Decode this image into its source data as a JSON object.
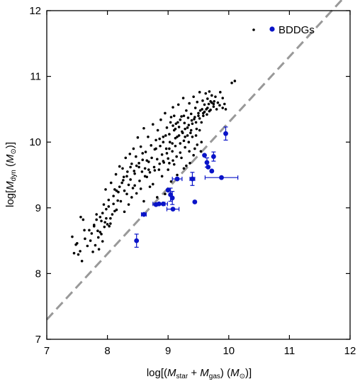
{
  "chart_data": {
    "type": "scatter",
    "xlabel": {
      "prefix": "log[(",
      "var1": "M",
      "sub1": "star",
      "plus": " + ",
      "var2": "M",
      "sub2": "gas",
      "mid": ") (",
      "var3": "M",
      "sub3": "⊙",
      "suffix": ")]"
    },
    "ylabel": {
      "prefix": "log[",
      "var1": "M",
      "sub1": "dyn",
      "mid": " (",
      "var2": "M",
      "sub2": "⊙",
      "suffix": ")]"
    },
    "xlim": [
      7,
      12
    ],
    "ylim": [
      7,
      12
    ],
    "xticks": [
      "7",
      "8",
      "9",
      "10",
      "11",
      "12"
    ],
    "yticks": [
      "7",
      "8",
      "9",
      "10",
      "11",
      "12"
    ],
    "grid": false,
    "legend": {
      "placement": "top-right",
      "label": "BDDGs"
    },
    "reference_line": {
      "style": "dashed",
      "color": "#999999",
      "x": [
        7,
        12
      ],
      "y": [
        7.3,
        12.3
      ]
    },
    "series": [
      {
        "color": "#000000",
        "marker": "small-dot",
        "points": [
          [
            7.42,
            8.56
          ],
          [
            7.45,
            8.31
          ],
          [
            7.48,
            8.44
          ],
          [
            7.52,
            8.29
          ],
          [
            7.55,
            8.34
          ],
          [
            7.58,
            8.19
          ],
          [
            7.56,
            8.86
          ],
          [
            7.6,
            8.82
          ],
          [
            7.63,
            8.53
          ],
          [
            7.67,
            8.42
          ],
          [
            7.7,
            8.66
          ],
          [
            7.72,
            8.5
          ],
          [
            7.74,
            8.61
          ],
          [
            7.76,
            8.33
          ],
          [
            7.78,
            8.72
          ],
          [
            7.8,
            8.43
          ],
          [
            7.82,
            8.9
          ],
          [
            7.85,
            8.55
          ],
          [
            7.86,
            8.37
          ],
          [
            7.88,
            8.63
          ],
          [
            7.9,
            8.8
          ],
          [
            7.92,
            8.49
          ],
          [
            7.94,
            9.05
          ],
          [
            7.95,
            8.71
          ],
          [
            7.97,
            9.28
          ],
          [
            7.98,
            8.84
          ],
          [
            8.0,
            8.75
          ],
          [
            8.02,
            9.02
          ],
          [
            8.03,
            8.72
          ],
          [
            8.05,
            8.76
          ],
          [
            8.06,
            9.38
          ],
          [
            8.08,
            8.9
          ],
          [
            8.1,
            9.18
          ],
          [
            8.12,
            9.28
          ],
          [
            8.14,
            9.51
          ],
          [
            8.15,
            8.97
          ],
          [
            8.17,
            9.11
          ],
          [
            8.18,
            9.24
          ],
          [
            8.2,
            9.63
          ],
          [
            8.22,
            9.1
          ],
          [
            8.24,
            9.38
          ],
          [
            8.25,
            9.6
          ],
          [
            8.27,
            9.47
          ],
          [
            8.28,
            8.94
          ],
          [
            8.3,
            9.76
          ],
          [
            8.32,
            9.21
          ],
          [
            8.33,
            9.55
          ],
          [
            8.35,
            9.35
          ],
          [
            8.37,
            9.82
          ],
          [
            8.38,
            9.43
          ],
          [
            8.4,
            9.67
          ],
          [
            8.42,
            9.3
          ],
          [
            8.43,
            9.9
          ],
          [
            8.45,
            9.52
          ],
          [
            8.47,
            9.78
          ],
          [
            8.48,
            9.22
          ],
          [
            8.5,
            10.07
          ],
          [
            8.52,
            9.62
          ],
          [
            8.53,
            9.41
          ],
          [
            8.55,
            9.93
          ],
          [
            8.57,
            9.55
          ],
          [
            8.58,
            9.73
          ],
          [
            8.6,
            10.21
          ],
          [
            8.62,
            9.6
          ],
          [
            8.63,
            9.85
          ],
          [
            8.65,
            9.47
          ],
          [
            8.67,
            10.08
          ],
          [
            8.68,
            9.7
          ],
          [
            8.7,
            9.54
          ],
          [
            8.72,
            9.95
          ],
          [
            8.73,
            9.76
          ],
          [
            8.75,
            10.27
          ],
          [
            8.77,
            9.62
          ],
          [
            8.78,
            9.89
          ],
          [
            8.8,
            10.03
          ],
          [
            8.82,
            9.74
          ],
          [
            8.83,
            10.18
          ],
          [
            8.85,
            9.58
          ],
          [
            8.87,
            9.94
          ],
          [
            8.88,
            10.34
          ],
          [
            8.9,
            9.81
          ],
          [
            8.92,
            10.08
          ],
          [
            8.93,
            9.69
          ],
          [
            8.95,
            10.44
          ],
          [
            8.97,
            9.9
          ],
          [
            8.98,
            10.22
          ],
          [
            9.0,
            9.75
          ],
          [
            9.02,
            10.12
          ],
          [
            9.03,
            10.0
          ],
          [
            9.05,
            10.38
          ],
          [
            9.07,
            9.86
          ],
          [
            9.08,
            10.53
          ],
          [
            9.1,
            10.18
          ],
          [
            9.12,
            9.94
          ],
          [
            9.13,
            10.28
          ],
          [
            9.15,
            10.08
          ],
          [
            9.17,
            10.57
          ],
          [
            9.18,
            10.23
          ],
          [
            9.2,
            9.98
          ],
          [
            9.22,
            10.39
          ],
          [
            9.23,
            10.16
          ],
          [
            9.25,
            10.67
          ],
          [
            9.27,
            10.29
          ],
          [
            9.28,
            10.08
          ],
          [
            9.3,
            10.48
          ],
          [
            9.32,
            10.22
          ],
          [
            9.33,
            10.37
          ],
          [
            9.35,
            10.59
          ],
          [
            9.37,
            10.14
          ],
          [
            9.38,
            10.43
          ],
          [
            9.4,
            10.28
          ],
          [
            9.42,
            10.69
          ],
          [
            9.43,
            10.35
          ],
          [
            9.45,
            10.52
          ],
          [
            9.47,
            10.2
          ],
          [
            9.48,
            10.61
          ],
          [
            9.5,
            10.4
          ],
          [
            9.52,
            10.76
          ],
          [
            9.53,
            10.48
          ],
          [
            9.55,
            10.3
          ],
          [
            9.57,
            10.63
          ],
          [
            9.58,
            10.44
          ],
          [
            9.6,
            10.57
          ],
          [
            9.62,
            10.74
          ],
          [
            9.63,
            10.5
          ],
          [
            9.65,
            10.66
          ],
          [
            9.67,
            10.58
          ],
          [
            9.68,
            10.77
          ],
          [
            9.7,
            10.62
          ],
          [
            9.72,
            10.71
          ],
          [
            9.75,
            10.54
          ],
          [
            9.78,
            10.69
          ],
          [
            9.82,
            10.6
          ],
          [
            9.86,
            10.76
          ],
          [
            9.9,
            10.67
          ],
          [
            10.05,
            10.9
          ],
          [
            10.1,
            10.93
          ],
          [
            8.6,
            9.1
          ],
          [
            8.7,
            9.32
          ],
          [
            8.75,
            9.36
          ],
          [
            8.82,
            9.16
          ],
          [
            8.9,
            9.48
          ],
          [
            8.95,
            9.21
          ],
          [
            9.0,
            9.58
          ],
          [
            9.05,
            9.4
          ],
          [
            9.1,
            9.66
          ],
          [
            9.15,
            9.5
          ],
          [
            9.22,
            9.76
          ],
          [
            9.3,
            9.64
          ],
          [
            9.35,
            9.86
          ],
          [
            9.42,
            9.8
          ],
          [
            9.48,
            9.96
          ],
          [
            9.55,
            10.0
          ],
          [
            8.35,
            9.05
          ],
          [
            8.4,
            9.16
          ],
          [
            8.28,
            9.26
          ],
          [
            8.12,
            8.95
          ],
          [
            8.05,
            8.84
          ],
          [
            7.96,
            8.78
          ],
          [
            7.84,
            8.65
          ],
          [
            7.62,
            8.66
          ],
          [
            7.5,
            8.46
          ],
          [
            7.9,
            8.6
          ],
          [
            8.45,
            9.34
          ],
          [
            8.55,
            9.29
          ],
          [
            8.62,
            9.48
          ],
          [
            8.68,
            9.58
          ],
          [
            8.78,
            9.57
          ],
          [
            8.86,
            9.67
          ],
          [
            8.92,
            9.71
          ],
          [
            8.98,
            9.83
          ],
          [
            9.02,
            9.9
          ],
          [
            9.07,
            9.98
          ],
          [
            9.12,
            10.06
          ],
          [
            9.18,
            10.1
          ],
          [
            9.24,
            10.14
          ],
          [
            9.28,
            10.2
          ],
          [
            9.34,
            10.26
          ],
          [
            9.39,
            10.33
          ],
          [
            9.44,
            10.38
          ],
          [
            9.5,
            10.44
          ],
          [
            9.56,
            10.5
          ],
          [
            9.6,
            10.46
          ],
          [
            9.65,
            10.52
          ],
          [
            9.7,
            10.49
          ],
          [
            9.75,
            10.58
          ],
          [
            9.8,
            10.5
          ],
          [
            9.85,
            10.56
          ],
          [
            9.9,
            10.52
          ],
          [
            9.93,
            10.58
          ],
          [
            9.95,
            10.5
          ],
          [
            8.65,
            9.72
          ],
          [
            8.58,
            9.83
          ],
          [
            8.52,
            9.68
          ],
          [
            8.48,
            9.64
          ],
          [
            8.44,
            9.56
          ],
          [
            8.38,
            9.62
          ],
          [
            8.32,
            9.48
          ],
          [
            8.26,
            9.42
          ],
          [
            8.2,
            9.32
          ],
          [
            8.15,
            9.26
          ],
          [
            8.1,
            9.06
          ],
          [
            8.02,
            9.12
          ],
          [
            7.98,
            8.98
          ],
          [
            7.92,
            8.92
          ],
          [
            7.88,
            8.86
          ],
          [
            7.82,
            8.82
          ],
          [
            7.78,
            8.74
          ],
          [
            9.26,
            10.02
          ],
          [
            9.32,
            10.1
          ],
          [
            9.38,
            10.18
          ],
          [
            9.46,
            10.3
          ],
          [
            9.52,
            10.36
          ],
          [
            9.58,
            10.4
          ],
          [
            9.64,
            10.42
          ],
          [
            9.68,
            10.47
          ],
          [
            9.72,
            10.6
          ],
          [
            9.76,
            10.62
          ],
          [
            9.12,
            10.2
          ],
          [
            9.16,
            10.3
          ],
          [
            9.2,
            10.34
          ],
          [
            9.26,
            10.4
          ],
          [
            9.1,
            10.4
          ],
          [
            9.04,
            10.3
          ],
          [
            9.08,
            10.25
          ],
          [
            8.96,
            10.1
          ],
          [
            8.92,
            10.0
          ],
          [
            8.86,
            10.05
          ],
          [
            8.8,
            9.9
          ],
          [
            9.46,
            10.1
          ],
          [
            9.52,
            10.18
          ],
          [
            9.4,
            10.08
          ],
          [
            9.34,
            10.0
          ],
          [
            9.28,
            9.92
          ],
          [
            9.2,
            9.84
          ],
          [
            9.14,
            9.78
          ],
          [
            9.08,
            9.72
          ],
          [
            9.02,
            9.68
          ],
          [
            9.26,
            9.6
          ],
          [
            9.36,
            9.68
          ],
          [
            9.44,
            9.9
          ],
          [
            9.54,
            9.86
          ]
        ]
      },
      {
        "name": "BDDGs",
        "color": "#0a14c8",
        "marker": "dot",
        "points": [
          {
            "x": 8.48,
            "y": 8.5,
            "yerr": 0.1
          },
          {
            "x": 8.6,
            "y": 8.9,
            "xerr": 0.04
          },
          {
            "x": 8.8,
            "y": 9.05
          },
          {
            "x": 8.85,
            "y": 9.06,
            "xerr": 0.1
          },
          {
            "x": 8.92,
            "y": 9.06,
            "xerr": 0.07
          },
          {
            "x": 9.0,
            "y": 9.27
          },
          {
            "x": 9.04,
            "y": 9.2,
            "yerr": 0.1
          },
          {
            "x": 9.07,
            "y": 9.15,
            "yerr": 0.1
          },
          {
            "x": 9.08,
            "y": 8.98,
            "xerr": 0.1
          },
          {
            "x": 9.15,
            "y": 9.44,
            "xerr": 0.08
          },
          {
            "x": 9.4,
            "y": 9.44,
            "xerr": 0.04,
            "yerr": 0.1
          },
          {
            "x": 9.44,
            "y": 9.09
          },
          {
            "x": 9.6,
            "y": 9.8
          },
          {
            "x": 9.64,
            "y": 9.69,
            "yerr": 0.07
          },
          {
            "x": 9.66,
            "y": 9.62
          },
          {
            "x": 9.72,
            "y": 9.56
          },
          {
            "x": 9.75,
            "y": 9.78,
            "yerr": 0.07
          },
          {
            "x": 9.88,
            "y": 9.46,
            "xerr": 0.27
          },
          {
            "x": 9.95,
            "y": 10.13,
            "yerr": 0.1
          }
        ]
      }
    ]
  }
}
